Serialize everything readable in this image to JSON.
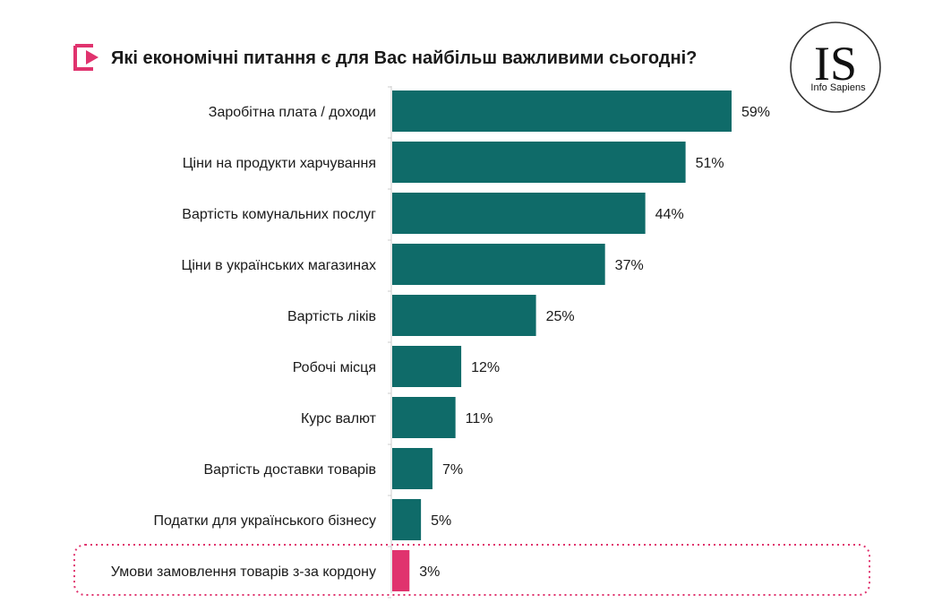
{
  "title": "Які економічні питання є для Вас найбільш важливими сьогодні?",
  "logo": {
    "mark": "IS",
    "name": "Info Sapiens"
  },
  "colors": {
    "bar": "#0f6b69",
    "highlight": "#e0336e",
    "axis": "#cccccc",
    "title_icon": "#e0336e"
  },
  "icons": {
    "title": "arrow-bracket-icon"
  },
  "chart_data": {
    "type": "bar",
    "orientation": "horizontal",
    "title": "Які економічні питання є для Вас найбільш важливими сьогодні?",
    "value_suffix": "%",
    "categories": [
      "Заробітна плата / доходи",
      "Ціни на продукти харчування",
      "Вартість комунальних послуг",
      "Ціни в українських магазинах",
      "Вартість ліків",
      "Робочі місця",
      "Курс валют",
      "Вартість доставки товарів",
      "Податки для українського бізнесу",
      "Умови замовлення товарів з-за кордону"
    ],
    "values": [
      59,
      51,
      44,
      37,
      25,
      12,
      11,
      7,
      5,
      3
    ],
    "highlighted": [
      "Умови замовлення товарів з-за кордону"
    ],
    "xlim": [
      0,
      59
    ],
    "grid": false,
    "legend": "none"
  }
}
